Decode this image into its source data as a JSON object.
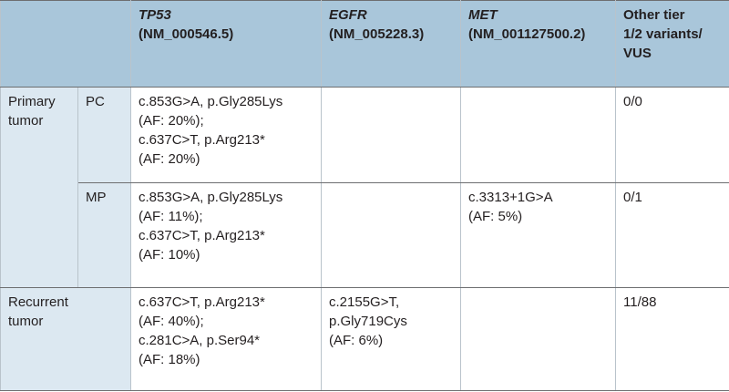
{
  "header": {
    "columns": [
      {
        "gene": "TP53",
        "accession": "(NM_000546.5)"
      },
      {
        "gene": "EGFR",
        "accession": "(NM_005228.3)"
      },
      {
        "gene": "MET",
        "accession": "(NM_001127500.2)"
      }
    ],
    "other": [
      "Other tier",
      "1/2 variants/",
      "VUS"
    ]
  },
  "table": {
    "groups": [
      {
        "label": [
          "Primary",
          "tumor"
        ],
        "rows": [
          {
            "label": "PC",
            "cells": [
              [
                "c.853G>A, p.Gly285Lys",
                "(AF: 20%);",
                "c.637C>T, p.Arg213*",
                "(AF: 20%)"
              ],
              [],
              []
            ],
            "other": "0/0"
          },
          {
            "label": "MP",
            "cells": [
              [
                "c.853G>A, p.Gly285Lys",
                "(AF: 11%);",
                "c.637C>T, p.Arg213*",
                "(AF: 10%)"
              ],
              [],
              [
                "c.3313+1G>A",
                "(AF: 5%)"
              ]
            ],
            "other": "0/1"
          }
        ]
      },
      {
        "label": [
          "Recurrent",
          "tumor"
        ],
        "rows": [
          {
            "cells": [
              [
                "c.637C>T, p.Arg213*",
                "(AF: 40%);",
                "c.281C>A, p.Ser94*",
                "(AF: 18%)"
              ],
              [
                "c.2155G>T,",
                "p.Gly719Cys",
                "(AF: 6%)"
              ],
              []
            ],
            "other": "11/88"
          }
        ]
      }
    ]
  }
}
